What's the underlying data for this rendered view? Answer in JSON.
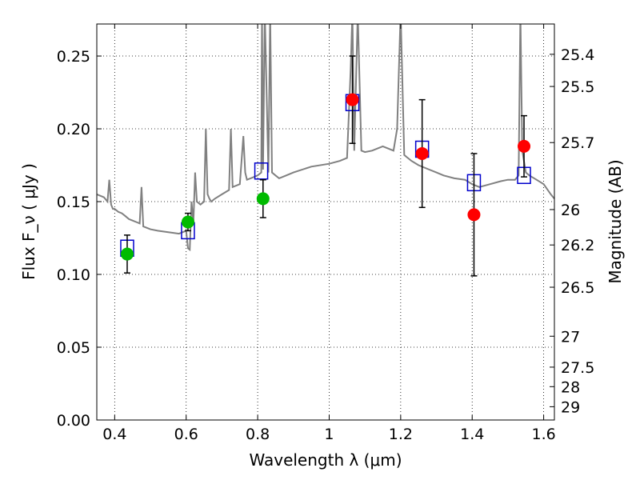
{
  "chart_data": {
    "type": "scatter",
    "title": "",
    "xlabel": "Wavelength  λ (μm)",
    "ylabel": "Flux  F_ν  ( μJy )",
    "y2label": "Magnitude (AB)",
    "xlim": [
      0.35,
      1.63
    ],
    "ylim": [
      0.0,
      0.272
    ],
    "grid": true,
    "x_ticks": [
      0.4,
      0.6,
      0.8,
      1.0,
      1.2,
      1.4,
      1.6
    ],
    "x_tick_labels": [
      "0.4",
      "0.6",
      "0.8",
      "1",
      "1.2",
      "1.4",
      "1.6"
    ],
    "y_ticks": [
      0.0,
      0.05,
      0.1,
      0.15,
      0.2,
      0.25
    ],
    "y_tick_labels": [
      "0.00",
      "0.05",
      "0.10",
      "0.15",
      "0.20",
      "0.25"
    ],
    "y2_ticks": [
      {
        "label": "25.4",
        "mag": 25.4
      },
      {
        "label": "25.5",
        "mag": 25.5
      },
      {
        "label": "25.7",
        "mag": 25.7
      },
      {
        "label": "26",
        "mag": 26.0
      },
      {
        "label": "26.2",
        "mag": 26.2
      },
      {
        "label": "26.5",
        "mag": 26.5
      },
      {
        "label": "27",
        "mag": 27.0
      },
      {
        "label": "27.5",
        "mag": 27.5
      },
      {
        "label": "28",
        "mag": 28.0
      },
      {
        "label": "29",
        "mag": 29.0
      }
    ],
    "series": [
      {
        "role": "model_spectrum",
        "style": "line",
        "color": "#808080",
        "x": [
          0.35,
          0.37,
          0.38,
          0.385,
          0.39,
          0.395,
          0.4,
          0.41,
          0.42,
          0.43,
          0.44,
          0.45,
          0.46,
          0.47,
          0.475,
          0.48,
          0.49,
          0.5,
          0.52,
          0.55,
          0.58,
          0.6,
          0.605,
          0.61,
          0.615,
          0.62,
          0.625,
          0.63,
          0.64,
          0.65,
          0.655,
          0.66,
          0.665,
          0.67,
          0.68,
          0.7,
          0.72,
          0.725,
          0.73,
          0.75,
          0.76,
          0.765,
          0.77,
          0.78,
          0.8,
          0.81,
          0.812,
          0.815,
          0.82,
          0.83,
          0.835,
          0.84,
          0.85,
          0.86,
          0.88,
          0.9,
          0.95,
          1.0,
          1.03,
          1.05,
          1.06,
          1.065,
          1.07,
          1.08,
          1.09,
          1.1,
          1.12,
          1.15,
          1.18,
          1.19,
          1.2,
          1.21,
          1.23,
          1.25,
          1.28,
          1.3,
          1.32,
          1.35,
          1.38,
          1.4,
          1.42,
          1.45,
          1.48,
          1.5,
          1.52,
          1.53,
          1.535,
          1.54,
          1.55,
          1.56,
          1.58,
          1.6,
          1.62,
          1.63
        ],
        "values": [
          0.155,
          0.153,
          0.15,
          0.165,
          0.148,
          0.145,
          0.145,
          0.143,
          0.142,
          0.14,
          0.138,
          0.137,
          0.136,
          0.135,
          0.16,
          0.133,
          0.132,
          0.131,
          0.13,
          0.129,
          0.128,
          0.13,
          0.118,
          0.117,
          0.15,
          0.135,
          0.17,
          0.15,
          0.148,
          0.15,
          0.2,
          0.155,
          0.152,
          0.15,
          0.152,
          0.155,
          0.158,
          0.2,
          0.16,
          0.162,
          0.195,
          0.17,
          0.165,
          0.166,
          0.168,
          0.17,
          0.28,
          0.172,
          0.28,
          0.17,
          0.28,
          0.17,
          0.168,
          0.166,
          0.168,
          0.17,
          0.174,
          0.176,
          0.178,
          0.18,
          0.24,
          0.28,
          0.185,
          0.28,
          0.185,
          0.184,
          0.185,
          0.188,
          0.185,
          0.2,
          0.28,
          0.182,
          0.178,
          0.175,
          0.172,
          0.17,
          0.168,
          0.166,
          0.165,
          0.162,
          0.16,
          0.162,
          0.164,
          0.165,
          0.165,
          0.168,
          0.28,
          0.185,
          0.17,
          0.168,
          0.165,
          0.162,
          0.155,
          0.152
        ]
      },
      {
        "role": "model_bandpass",
        "style": "open_square",
        "color": "#0000cc",
        "x": [
          0.435,
          0.605,
          0.81,
          1.065,
          1.26,
          1.405,
          1.545
        ],
        "values": [
          0.118,
          0.13,
          0.171,
          0.218,
          0.186,
          0.163,
          0.168
        ]
      },
      {
        "role": "observed_optical",
        "style": "filled_circle",
        "color": "#00bb00",
        "x": [
          0.435,
          0.605,
          0.815
        ],
        "values": [
          0.114,
          0.136,
          0.152
        ],
        "yerr": [
          0.013,
          0.006,
          0.013
        ]
      },
      {
        "role": "observed_nir",
        "style": "filled_circle",
        "color": "#ff0000",
        "x": [
          1.065,
          1.26,
          1.405,
          1.545
        ],
        "values": [
          0.22,
          0.183,
          0.141,
          0.188
        ],
        "yerr": [
          0.03,
          0.037,
          0.042,
          0.021
        ]
      }
    ]
  }
}
